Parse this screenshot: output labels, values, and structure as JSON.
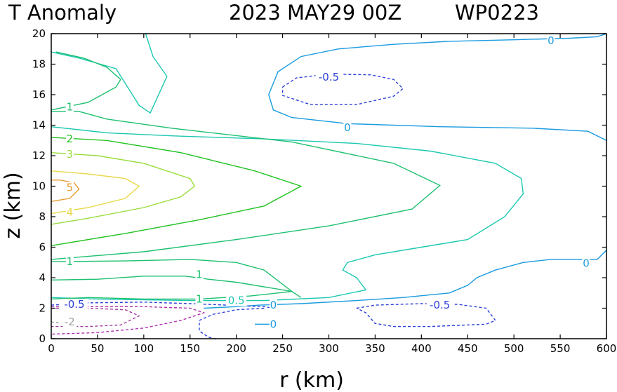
{
  "chart_data": {
    "type": "contour",
    "title": "T Anomaly",
    "date_label": "2023 MAY29 00Z",
    "storm_id": "WP0223",
    "xlabel": "r (km)",
    "ylabel": "z (km)",
    "xlim": [
      0,
      600
    ],
    "ylim": [
      0,
      20
    ],
    "x_ticks": [
      0,
      50,
      100,
      150,
      200,
      250,
      300,
      350,
      400,
      450,
      500,
      550,
      600
    ],
    "y_ticks": [
      0,
      2,
      4,
      6,
      8,
      10,
      12,
      14,
      16,
      18,
      20
    ],
    "contours": [
      {
        "level": 0,
        "color": "#1a9be0",
        "dashed": false,
        "label": "0",
        "paths": [
          [
            [
              600,
              20.0
            ],
            [
              590,
              19.8
            ],
            [
              560,
              19.7
            ],
            [
              500,
              19.6
            ],
            [
              430,
              19.5
            ],
            [
              370,
              19.3
            ],
            [
              310,
              19.0
            ],
            [
              270,
              18.5
            ],
            [
              245,
              17.5
            ],
            [
              235,
              16.0
            ],
            [
              240,
              15.0
            ],
            [
              260,
              14.5
            ],
            [
              320,
              14.1
            ],
            [
              420,
              13.9
            ],
            [
              520,
              13.8
            ],
            [
              580,
              13.6
            ],
            [
              600,
              13.0
            ]
          ],
          [
            [
              600,
              5.8
            ],
            [
              590,
              5.2
            ],
            [
              570,
              5.2
            ],
            [
              540,
              5.2
            ],
            [
              510,
              5.0
            ],
            [
              480,
              4.5
            ],
            [
              460,
              4.0
            ],
            [
              450,
              3.5
            ],
            [
              430,
              3.0
            ],
            [
              380,
              2.7
            ],
            [
              330,
              2.5
            ],
            [
              270,
              2.3
            ],
            [
              225,
              2.2
            ],
            [
              200,
              2.1
            ],
            [
              165,
              2.0
            ]
          ],
          [
            [
              220,
              0.95
            ],
            [
              237,
              0.95
            ]
          ]
        ]
      },
      {
        "level": -0.5,
        "color": "#2a3fd8",
        "dashed": true,
        "label": "-0.5",
        "paths": [
          [
            [
              250,
              16.5
            ],
            [
              265,
              17.1
            ],
            [
              300,
              17.35
            ],
            [
              345,
              17.3
            ],
            [
              370,
              17.0
            ],
            [
              380,
              16.4
            ],
            [
              370,
              15.9
            ],
            [
              330,
              15.35
            ],
            [
              280,
              15.35
            ],
            [
              250,
              15.95
            ],
            [
              250,
              16.5
            ]
          ],
          [
            [
              0,
              2.2
            ],
            [
              40,
              2.35
            ],
            [
              100,
              2.4
            ],
            [
              150,
              2.3
            ],
            [
              190,
              2.2
            ],
            [
              230,
              2.1
            ],
            [
              240,
              2.0
            ]
          ],
          [
            [
              230,
              2.0
            ],
            [
              200,
              1.9
            ],
            [
              175,
              1.6
            ],
            [
              160,
              1.2
            ],
            [
              160,
              0.5
            ],
            [
              170,
              0.1
            ],
            [
              180,
              -0.05
            ]
          ],
          [
            [
              330,
              2.0
            ],
            [
              350,
              2.2
            ],
            [
              400,
              2.3
            ],
            [
              440,
              2.25
            ],
            [
              470,
              2.0
            ],
            [
              480,
              1.2
            ],
            [
              470,
              0.95
            ],
            [
              410,
              0.8
            ],
            [
              370,
              0.8
            ],
            [
              350,
              1.0
            ],
            [
              340,
              1.7
            ],
            [
              330,
              2.0
            ]
          ]
        ]
      },
      {
        "level": 0.5,
        "color": "#1cc8b0",
        "dashed": false,
        "label": "0.5",
        "paths": [
          [
            [
              0,
              2.7
            ],
            [
              50,
              2.6
            ],
            [
              150,
              2.5
            ],
            [
              230,
              2.5
            ],
            [
              300,
              2.7
            ],
            [
              340,
              3.2
            ],
            [
              330,
              4.0
            ],
            [
              315,
              4.5
            ],
            [
              320,
              5.0
            ],
            [
              350,
              5.5
            ],
            [
              400,
              6.0
            ],
            [
              450,
              6.5
            ],
            [
              490,
              8.0
            ],
            [
              510,
              9.5
            ],
            [
              508,
              10.5
            ],
            [
              480,
              11.5
            ],
            [
              410,
              12.3
            ],
            [
              330,
              12.8
            ],
            [
              230,
              13.1
            ],
            [
              130,
              13.3
            ],
            [
              60,
              13.5
            ],
            [
              0,
              13.9
            ]
          ],
          [
            [
              0,
              18.8
            ],
            [
              30,
              18.4
            ],
            [
              70,
              17.7
            ],
            [
              95,
              15.3
            ],
            [
              107,
              14.8
            ],
            [
              125,
              17.2
            ],
            [
              110,
              18.5
            ],
            [
              102,
              20.0
            ]
          ]
        ]
      },
      {
        "level": 1,
        "color": "#1dc070",
        "dashed": false,
        "label": "1",
        "paths": [
          [
            [
              0,
              15.0
            ],
            [
              40,
              15.5
            ],
            [
              70,
              16.5
            ],
            [
              75,
              17.0
            ],
            [
              60,
              17.8
            ],
            [
              35,
              18.4
            ],
            [
              5,
              18.8
            ]
          ],
          [
            [
              0,
              2.6
            ],
            [
              40,
              2.7
            ],
            [
              100,
              2.6
            ],
            [
              160,
              2.6
            ],
            [
              215,
              2.8
            ],
            [
              260,
              3.1
            ],
            [
              230,
              4.5
            ],
            [
              200,
              5.0
            ],
            [
              150,
              5.2
            ],
            [
              80,
              5.1
            ],
            [
              0,
              5.05
            ]
          ],
          [
            [
              0,
              3.85
            ],
            [
              50,
              3.9
            ],
            [
              100,
              4.1
            ],
            [
              145,
              4.1
            ],
            [
              170,
              3.9
            ],
            [
              200,
              3.7
            ],
            [
              260,
              3.1
            ],
            [
              270,
              2.7
            ]
          ],
          [
            [
              0,
              14.9
            ],
            [
              30,
              14.9
            ],
            [
              60,
              14.4
            ],
            [
              130,
              13.8
            ],
            [
              260,
              12.9
            ],
            [
              370,
              11.5
            ],
            [
              420,
              10.05
            ],
            [
              390,
              8.5
            ],
            [
              300,
              7.4
            ],
            [
              200,
              6.5
            ],
            [
              100,
              5.7
            ],
            [
              0,
              5.2
            ]
          ]
        ]
      },
      {
        "level": 2,
        "color": "#22c222",
        "dashed": false,
        "label": "2",
        "paths": [
          [
            [
              0,
              13.2
            ],
            [
              60,
              13.0
            ],
            [
              140,
              12.2
            ],
            [
              220,
              11.0
            ],
            [
              270,
              10.0
            ],
            [
              230,
              8.7
            ],
            [
              160,
              7.8
            ],
            [
              80,
              6.9
            ],
            [
              0,
              6.1
            ]
          ]
        ]
      },
      {
        "level": 3,
        "color": "#99dc3c",
        "dashed": false,
        "label": "3",
        "paths": [
          [
            [
              0,
              12.2
            ],
            [
              50,
              12.0
            ],
            [
              100,
              11.5
            ],
            [
              150,
              10.5
            ],
            [
              155,
              10.0
            ],
            [
              140,
              9.3
            ],
            [
              100,
              8.6
            ],
            [
              40,
              7.9
            ],
            [
              0,
              7.5
            ]
          ]
        ]
      },
      {
        "level": 4,
        "color": "#e8d84a",
        "dashed": false,
        "label": "4",
        "paths": [
          [
            [
              0,
              11.0
            ],
            [
              40,
              10.8
            ],
            [
              80,
              10.5
            ],
            [
              95,
              10.0
            ],
            [
              80,
              9.2
            ],
            [
              40,
              8.6
            ],
            [
              0,
              8.2
            ]
          ]
        ]
      },
      {
        "level": 5,
        "color": "#e89b34",
        "dashed": false,
        "label": "5",
        "paths": [
          [
            [
              0,
              9.0
            ],
            [
              20,
              9.2
            ],
            [
              30,
              9.8
            ],
            [
              25,
              10.2
            ],
            [
              10,
              10.4
            ],
            [
              0,
              10.4
            ]
          ]
        ]
      },
      {
        "level": -1,
        "color": "#b030b0",
        "dashed": true,
        "label": "",
        "paths": [
          [
            [
              0,
              2.1
            ],
            [
              50,
              2.1
            ],
            [
              100,
              2.1
            ],
            [
              150,
              2.0
            ],
            [
              165,
              1.7
            ],
            [
              140,
              1.2
            ],
            [
              100,
              0.7
            ],
            [
              50,
              0.4
            ],
            [
              0,
              0.3
            ]
          ]
        ]
      },
      {
        "level": -1.5,
        "color": "#a03ca0",
        "dashed": true,
        "label": "",
        "paths": [
          [
            [
              0,
              2.0
            ],
            [
              40,
              2.0
            ],
            [
              80,
              1.9
            ],
            [
              95,
              1.5
            ],
            [
              75,
              0.9
            ],
            [
              40,
              0.8
            ],
            [
              0,
              0.8
            ]
          ]
        ]
      },
      {
        "level": -2,
        "color": "#a0a0a0",
        "dashed": true,
        "label": "-2",
        "paths": [
          [
            [
              0,
              1.1
            ],
            [
              8,
              1.05
            ]
          ]
        ]
      }
    ],
    "labels": [
      {
        "text": "0",
        "x": 540,
        "y": 19.55,
        "color": "#1a9be0"
      },
      {
        "text": "0",
        "x": 320,
        "y": 13.85,
        "color": "#1a9be0"
      },
      {
        "text": "0",
        "x": 578,
        "y": 4.95,
        "color": "#1a9be0"
      },
      {
        "text": "0",
        "x": 240,
        "y": 2.2,
        "color": "#1a9be0"
      },
      {
        "text": "0",
        "x": 240,
        "y": 0.95,
        "color": "#1a9be0"
      },
      {
        "text": "-0.5",
        "x": 300,
        "y": 17.15,
        "color": "#2a3fd8"
      },
      {
        "text": "-0.5",
        "x": 420,
        "y": 2.2,
        "color": "#2a3fd8"
      },
      {
        "text": "-0.5",
        "x": 25,
        "y": 2.25,
        "color": "#2a3fd8"
      },
      {
        "text": "0.5",
        "x": 200,
        "y": 2.5,
        "color": "#1cc8b0"
      },
      {
        "text": "1",
        "x": 20,
        "y": 15.2,
        "color": "#1dc070"
      },
      {
        "text": "1",
        "x": 20,
        "y": 5.05,
        "color": "#1dc070"
      },
      {
        "text": "1",
        "x": 160,
        "y": 4.2,
        "color": "#1dc070"
      },
      {
        "text": "1",
        "x": 160,
        "y": 2.6,
        "color": "#1dc070"
      },
      {
        "text": "2",
        "x": 20,
        "y": 13.1,
        "color": "#22c222"
      },
      {
        "text": "3",
        "x": 20,
        "y": 12.1,
        "color": "#99dc3c"
      },
      {
        "text": "4",
        "x": 20,
        "y": 8.3,
        "color": "#e8d84a"
      },
      {
        "text": "5",
        "x": 20,
        "y": 9.9,
        "color": "#e89b34"
      },
      {
        "text": "-2",
        "x": 20,
        "y": 1.1,
        "color": "#a0a0a0"
      }
    ]
  }
}
